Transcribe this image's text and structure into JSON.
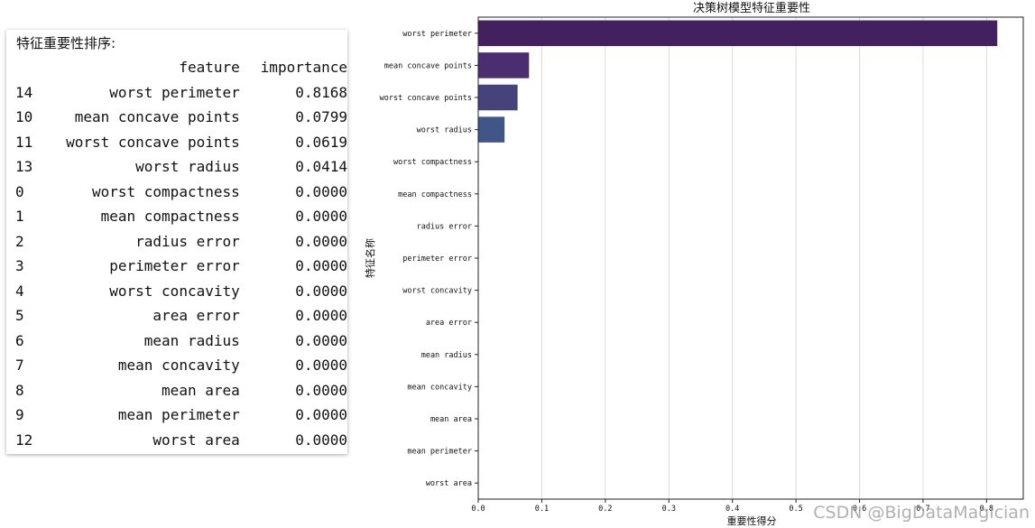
{
  "table": {
    "title": "特征重要性排序:",
    "headers": [
      "",
      "feature",
      "importance"
    ],
    "rows": [
      [
        "14",
        "worst perimeter",
        "0.8168"
      ],
      [
        "10",
        "mean concave points",
        "0.0799"
      ],
      [
        "11",
        "worst concave points",
        "0.0619"
      ],
      [
        "13",
        "worst radius",
        "0.0414"
      ],
      [
        "0",
        "worst compactness",
        "0.0000"
      ],
      [
        "1",
        "mean compactness",
        "0.0000"
      ],
      [
        "2",
        "radius error",
        "0.0000"
      ],
      [
        "3",
        "perimeter error",
        "0.0000"
      ],
      [
        "4",
        "worst concavity",
        "0.0000"
      ],
      [
        "5",
        "area error",
        "0.0000"
      ],
      [
        "6",
        "mean radius",
        "0.0000"
      ],
      [
        "7",
        "mean concavity",
        "0.0000"
      ],
      [
        "8",
        "mean area",
        "0.0000"
      ],
      [
        "9",
        "mean perimeter",
        "0.0000"
      ],
      [
        "12",
        "worst area",
        "0.0000"
      ]
    ]
  },
  "chart_data": {
    "type": "bar",
    "orientation": "horizontal",
    "title": "决策树模型特征重要性",
    "xlabel": "重要性得分",
    "ylabel": "特征名称",
    "categories": [
      "worst perimeter",
      "mean concave points",
      "worst concave points",
      "worst radius",
      "worst compactness",
      "mean compactness",
      "radius error",
      "perimeter error",
      "worst concavity",
      "area error",
      "mean radius",
      "mean concavity",
      "mean area",
      "mean perimeter",
      "worst area"
    ],
    "values": [
      0.8168,
      0.0799,
      0.0619,
      0.0414,
      0.0,
      0.0,
      0.0,
      0.0,
      0.0,
      0.0,
      0.0,
      0.0,
      0.0,
      0.0,
      0.0
    ],
    "bar_colors": [
      "#43205e",
      "#4a2e6f",
      "#46427a",
      "#3f5686",
      "#3d6a8c",
      "#35788e",
      "#2c8a8d",
      "#259a89",
      "#2aab7f",
      "#45ba70",
      "#6bc75c",
      "#97d147",
      "#c3d83a",
      "#e3df35",
      "#f7e43a"
    ],
    "xticks": [
      "0.0",
      "0.1",
      "0.2",
      "0.3",
      "0.4",
      "0.5",
      "0.6",
      "0.7",
      "0.8"
    ],
    "xlim": [
      0,
      0.8577
    ],
    "grid_x": true
  },
  "watermark": "CSDN @BigDataMagician"
}
